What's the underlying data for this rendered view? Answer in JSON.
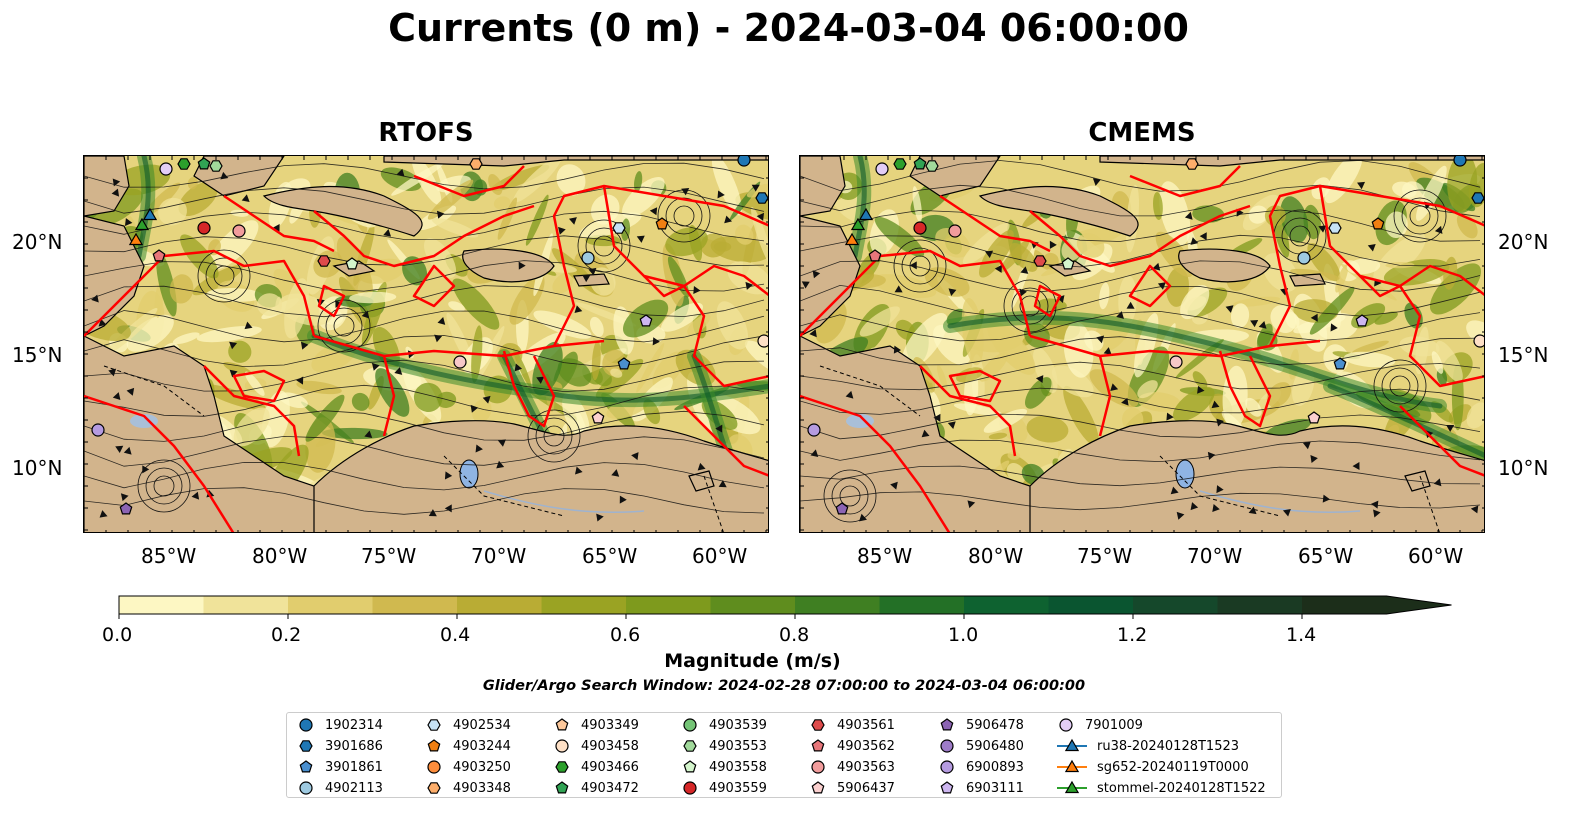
{
  "title": "Currents (0 m) - 2024-03-04 06:00:00",
  "panels": [
    {
      "name": "RTOFS"
    },
    {
      "name": "CMEMS"
    }
  ],
  "axes": {
    "lat_labels": [
      "20°N",
      "15°N",
      "10°N"
    ],
    "lon_labels": [
      "85°W",
      "80°W",
      "75°W",
      "70°W",
      "65°W",
      "60°W"
    ]
  },
  "colors": {
    "land": "#d2b48c",
    "boundary": "#ff0000",
    "ramp": [
      "#fdf7c3",
      "#f0e39a",
      "#e1cd6e",
      "#d0b94f",
      "#b9ac34",
      "#9aa323",
      "#7e9a1d",
      "#5f8d1e",
      "#3f7f22",
      "#237026",
      "#0e6230",
      "#0a5530",
      "#15482b",
      "#1a3a23",
      "#1c2e1a"
    ]
  },
  "colorbar": {
    "label": "Magnitude (m/s)",
    "ticks": [
      "0.0",
      "0.2",
      "0.4",
      "0.6",
      "0.8",
      "1.0",
      "1.2",
      "1.4"
    ]
  },
  "search_window": "Glider/Argo Search Window: 2024-02-28 07:00:00 to 2024-03-04 06:00:00",
  "legend": [
    {
      "label": "1902314",
      "shape": "circle",
      "color": "#1f77b4"
    },
    {
      "label": "3901686",
      "shape": "hexagon",
      "color": "#1f77b4"
    },
    {
      "label": "3901861",
      "shape": "pentagon",
      "color": "#4a8fcf"
    },
    {
      "label": "4902113",
      "shape": "circle",
      "color": "#9ecae1"
    },
    {
      "label": "4902534",
      "shape": "hexagon",
      "color": "#c6e2f5"
    },
    {
      "label": "4903244",
      "shape": "pentagon",
      "color": "#f07f12"
    },
    {
      "label": "4903250",
      "shape": "circle",
      "color": "#fd8d3c"
    },
    {
      "label": "4903348",
      "shape": "hexagon",
      "color": "#fdae6b"
    },
    {
      "label": "4903349",
      "shape": "pentagon",
      "color": "#fdc89b"
    },
    {
      "label": "4903458",
      "shape": "circle",
      "color": "#fee0c6"
    },
    {
      "label": "4903466",
      "shape": "hexagon",
      "color": "#2ca02c"
    },
    {
      "label": "4903472",
      "shape": "pentagon",
      "color": "#31a354"
    },
    {
      "label": "4903539",
      "shape": "circle",
      "color": "#74c476"
    },
    {
      "label": "4903553",
      "shape": "hexagon",
      "color": "#a1d99b"
    },
    {
      "label": "4903558",
      "shape": "pentagon",
      "color": "#d4f5cc"
    },
    {
      "label": "4903559",
      "shape": "circle",
      "color": "#d62728"
    },
    {
      "label": "4903561",
      "shape": "hexagon",
      "color": "#de4b4b"
    },
    {
      "label": "4903562",
      "shape": "pentagon",
      "color": "#e7767a"
    },
    {
      "label": "4903563",
      "shape": "circle",
      "color": "#f19c9c"
    },
    {
      "label": "5906437",
      "shape": "pentagon",
      "color": "#fbd0cf"
    },
    {
      "label": "5906478",
      "shape": "pentagon",
      "color": "#8c64b4"
    },
    {
      "label": "5906480",
      "shape": "circle",
      "color": "#9e7cc8"
    },
    {
      "label": "6900893",
      "shape": "circle",
      "color": "#b59be0"
    },
    {
      "label": "6903111",
      "shape": "pentagon",
      "color": "#cdb6f0"
    },
    {
      "label": "7901009",
      "shape": "circle",
      "color": "#e2cdf6"
    },
    {
      "label": "ru38-20240128T1523",
      "shape": "triangle-line",
      "color": "#1f77b4"
    },
    {
      "label": "sg652-20240119T0000",
      "shape": "triangle-line",
      "color": "#ff7f0e"
    },
    {
      "label": "stommel-20240128T1522",
      "shape": "triangle-line",
      "color": "#2ca02c"
    }
  ]
}
